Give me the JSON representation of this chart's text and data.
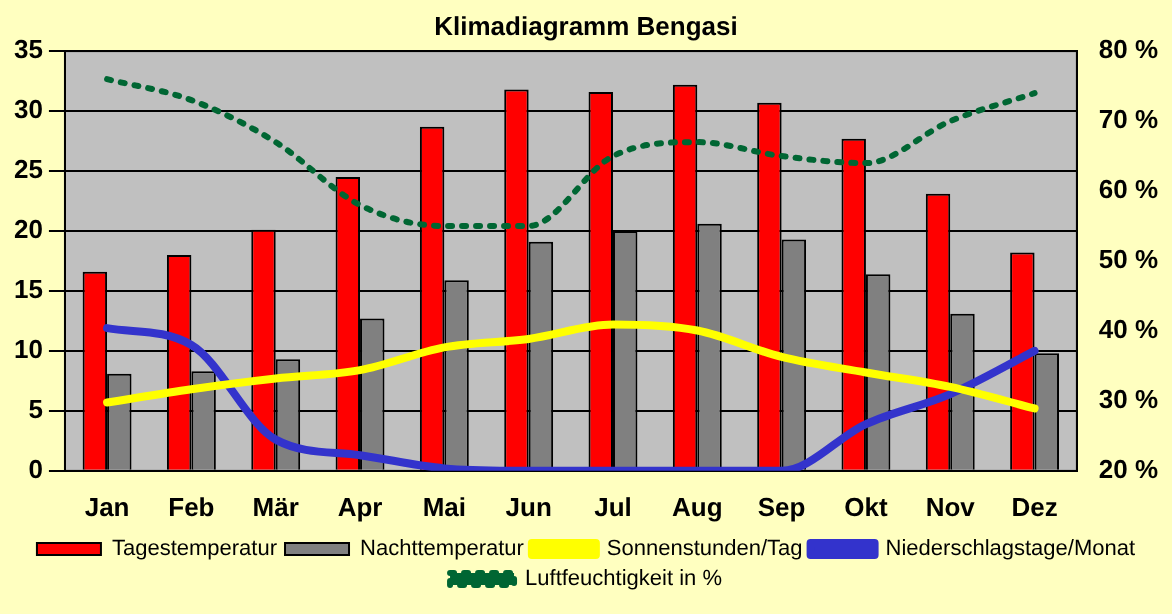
{
  "chart_data": {
    "type": "bar",
    "title": "Klimadiagramm Bengasi",
    "categories": [
      "Jan",
      "Feb",
      "Mär",
      "Apr",
      "Mai",
      "Jun",
      "Jul",
      "Aug",
      "Sep",
      "Okt",
      "Nov",
      "Dez"
    ],
    "series": [
      {
        "name": "Tagestemperatur",
        "color": "#ff0000",
        "values": [
          16.6,
          18.0,
          20.1,
          24.5,
          28.7,
          31.8,
          31.6,
          32.2,
          30.7,
          27.7,
          23.1,
          18.2
        ]
      },
      {
        "name": "Nachttemperatur",
        "color": "#808080",
        "values": [
          8.1,
          8.3,
          9.3,
          12.7,
          15.9,
          19.1,
          20.0,
          20.6,
          19.3,
          16.4,
          13.1,
          9.8
        ]
      },
      {
        "name": "Sonnenstunden/Tag",
        "type": "line",
        "color": "#ffff00",
        "line_style": "solid",
        "values": [
          5.7,
          6.8,
          7.7,
          8.4,
          10.3,
          11.0,
          12.2,
          11.7,
          9.5,
          8.2,
          7.0,
          5.2
        ]
      },
      {
        "name": "Niederschlagstage/Monat",
        "type": "line",
        "color": "#3333cc",
        "line_style": "solid",
        "values": [
          11.9,
          10.5,
          2.6,
          1.3,
          0.2,
          0,
          0,
          0,
          0,
          3.9,
          6.4,
          10.0
        ]
      },
      {
        "name": "Luftfeuchtigkeit in %",
        "type": "line",
        "color": "#006633",
        "line_style": "dotted",
        "axis": "y2",
        "values": [
          76,
          73,
          67,
          58,
          55,
          55,
          65,
          67,
          65,
          64,
          70,
          74
        ]
      }
    ],
    "ylim": [
      0,
      35
    ],
    "yticks": [
      0,
      5,
      10,
      15,
      20,
      25,
      30,
      35
    ],
    "y2lim": [
      20,
      80
    ],
    "y2ticks": [
      {
        "value": 20,
        "label": "20 %"
      },
      {
        "value": 30,
        "label": "30 %"
      },
      {
        "value": 40,
        "label": "40 %"
      },
      {
        "value": 50,
        "label": "50 %"
      },
      {
        "value": 60,
        "label": "60 %"
      },
      {
        "value": 70,
        "label": "70 %"
      },
      {
        "value": 80,
        "label": "80 %"
      }
    ],
    "grid": "y",
    "legend": "bottom",
    "marker": "none"
  }
}
